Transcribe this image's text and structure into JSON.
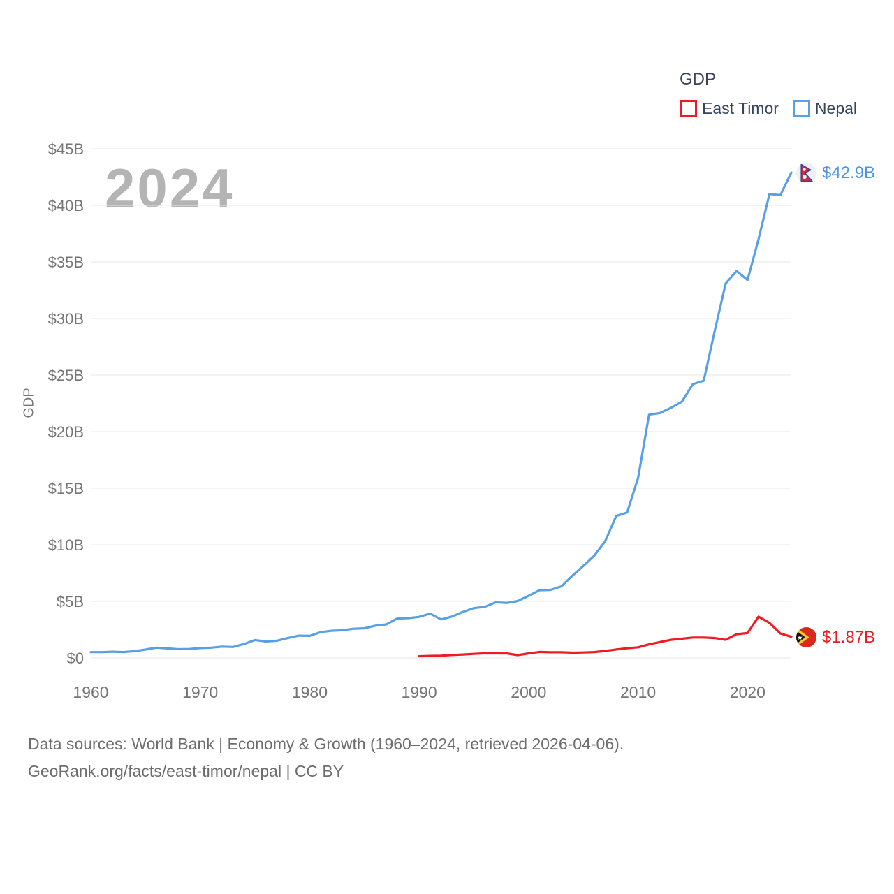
{
  "watermark": "2024",
  "legend": {
    "title": "GDP",
    "items": [
      {
        "label": "East Timor",
        "color": "#ED1C24"
      },
      {
        "label": "Nepal",
        "color": "#57A0E6"
      }
    ]
  },
  "y_axis_title": "GDP",
  "end_labels": {
    "nepal": {
      "value": "$42.9B",
      "color": "#4D96E4",
      "flag": "nepal-flag"
    },
    "east_timor": {
      "value": "$1.87B",
      "color": "#ED1C24",
      "flag": "east-timor-flag"
    }
  },
  "footer": {
    "line1": "Data sources: World Bank | Economy & Growth (1960–2024, retrieved 2026-04-06).",
    "line2": "GeoRank.org/facts/east-timor/nepal | CC BY"
  },
  "chart_data": {
    "type": "line",
    "title": "GDP",
    "ylabel": "GDP",
    "unit": "billion USD",
    "grid": true,
    "legend_position": "top-right",
    "xlim": [
      1960,
      2024
    ],
    "ylim": [
      0,
      45
    ],
    "x_ticks": [
      1960,
      1970,
      1980,
      1990,
      2000,
      2010,
      2020
    ],
    "y_ticks": [
      {
        "value": 0,
        "label": "$0"
      },
      {
        "value": 5,
        "label": "$5B"
      },
      {
        "value": 10,
        "label": "$10B"
      },
      {
        "value": 15,
        "label": "$15B"
      },
      {
        "value": 20,
        "label": "$20B"
      },
      {
        "value": 25,
        "label": "$25B"
      },
      {
        "value": 30,
        "label": "$30B"
      },
      {
        "value": 35,
        "label": "$35B"
      },
      {
        "value": 40,
        "label": "$40B"
      },
      {
        "value": 45,
        "label": "$45B"
      }
    ],
    "series": [
      {
        "name": "East Timor",
        "color": "#ED1C24",
        "start_year": 1990,
        "end_label": "$1.87B",
        "values": [
          0.15,
          0.18,
          0.2,
          0.26,
          0.3,
          0.36,
          0.41,
          0.4,
          0.4,
          0.25,
          0.4,
          0.53,
          0.5,
          0.5,
          0.46,
          0.48,
          0.52,
          0.62,
          0.75,
          0.85,
          0.94,
          1.2,
          1.4,
          1.6,
          1.7,
          1.8,
          1.8,
          1.75,
          1.6,
          2.1,
          2.2,
          3.65,
          3.1,
          2.16,
          1.87
        ]
      },
      {
        "name": "Nepal",
        "color": "#57A0E6",
        "start_year": 1960,
        "end_label": "$42.9B",
        "values": [
          0.51,
          0.51,
          0.55,
          0.52,
          0.6,
          0.74,
          0.91,
          0.84,
          0.77,
          0.79,
          0.87,
          0.91,
          1.0,
          0.97,
          1.23,
          1.58,
          1.45,
          1.52,
          1.75,
          1.97,
          1.95,
          2.28,
          2.4,
          2.45,
          2.58,
          2.62,
          2.85,
          2.96,
          3.49,
          3.52,
          3.63,
          3.92,
          3.4,
          3.66,
          4.07,
          4.4,
          4.52,
          4.92,
          4.86,
          5.03,
          5.49,
          5.99,
          6.01,
          6.33,
          7.27,
          8.13,
          9.04,
          10.33,
          12.55,
          12.85,
          15.9,
          21.5,
          21.65,
          22.1,
          22.65,
          24.2,
          24.5,
          28.9,
          33.1,
          34.2,
          33.4,
          37.0,
          41.0,
          40.9,
          42.9
        ]
      }
    ]
  }
}
